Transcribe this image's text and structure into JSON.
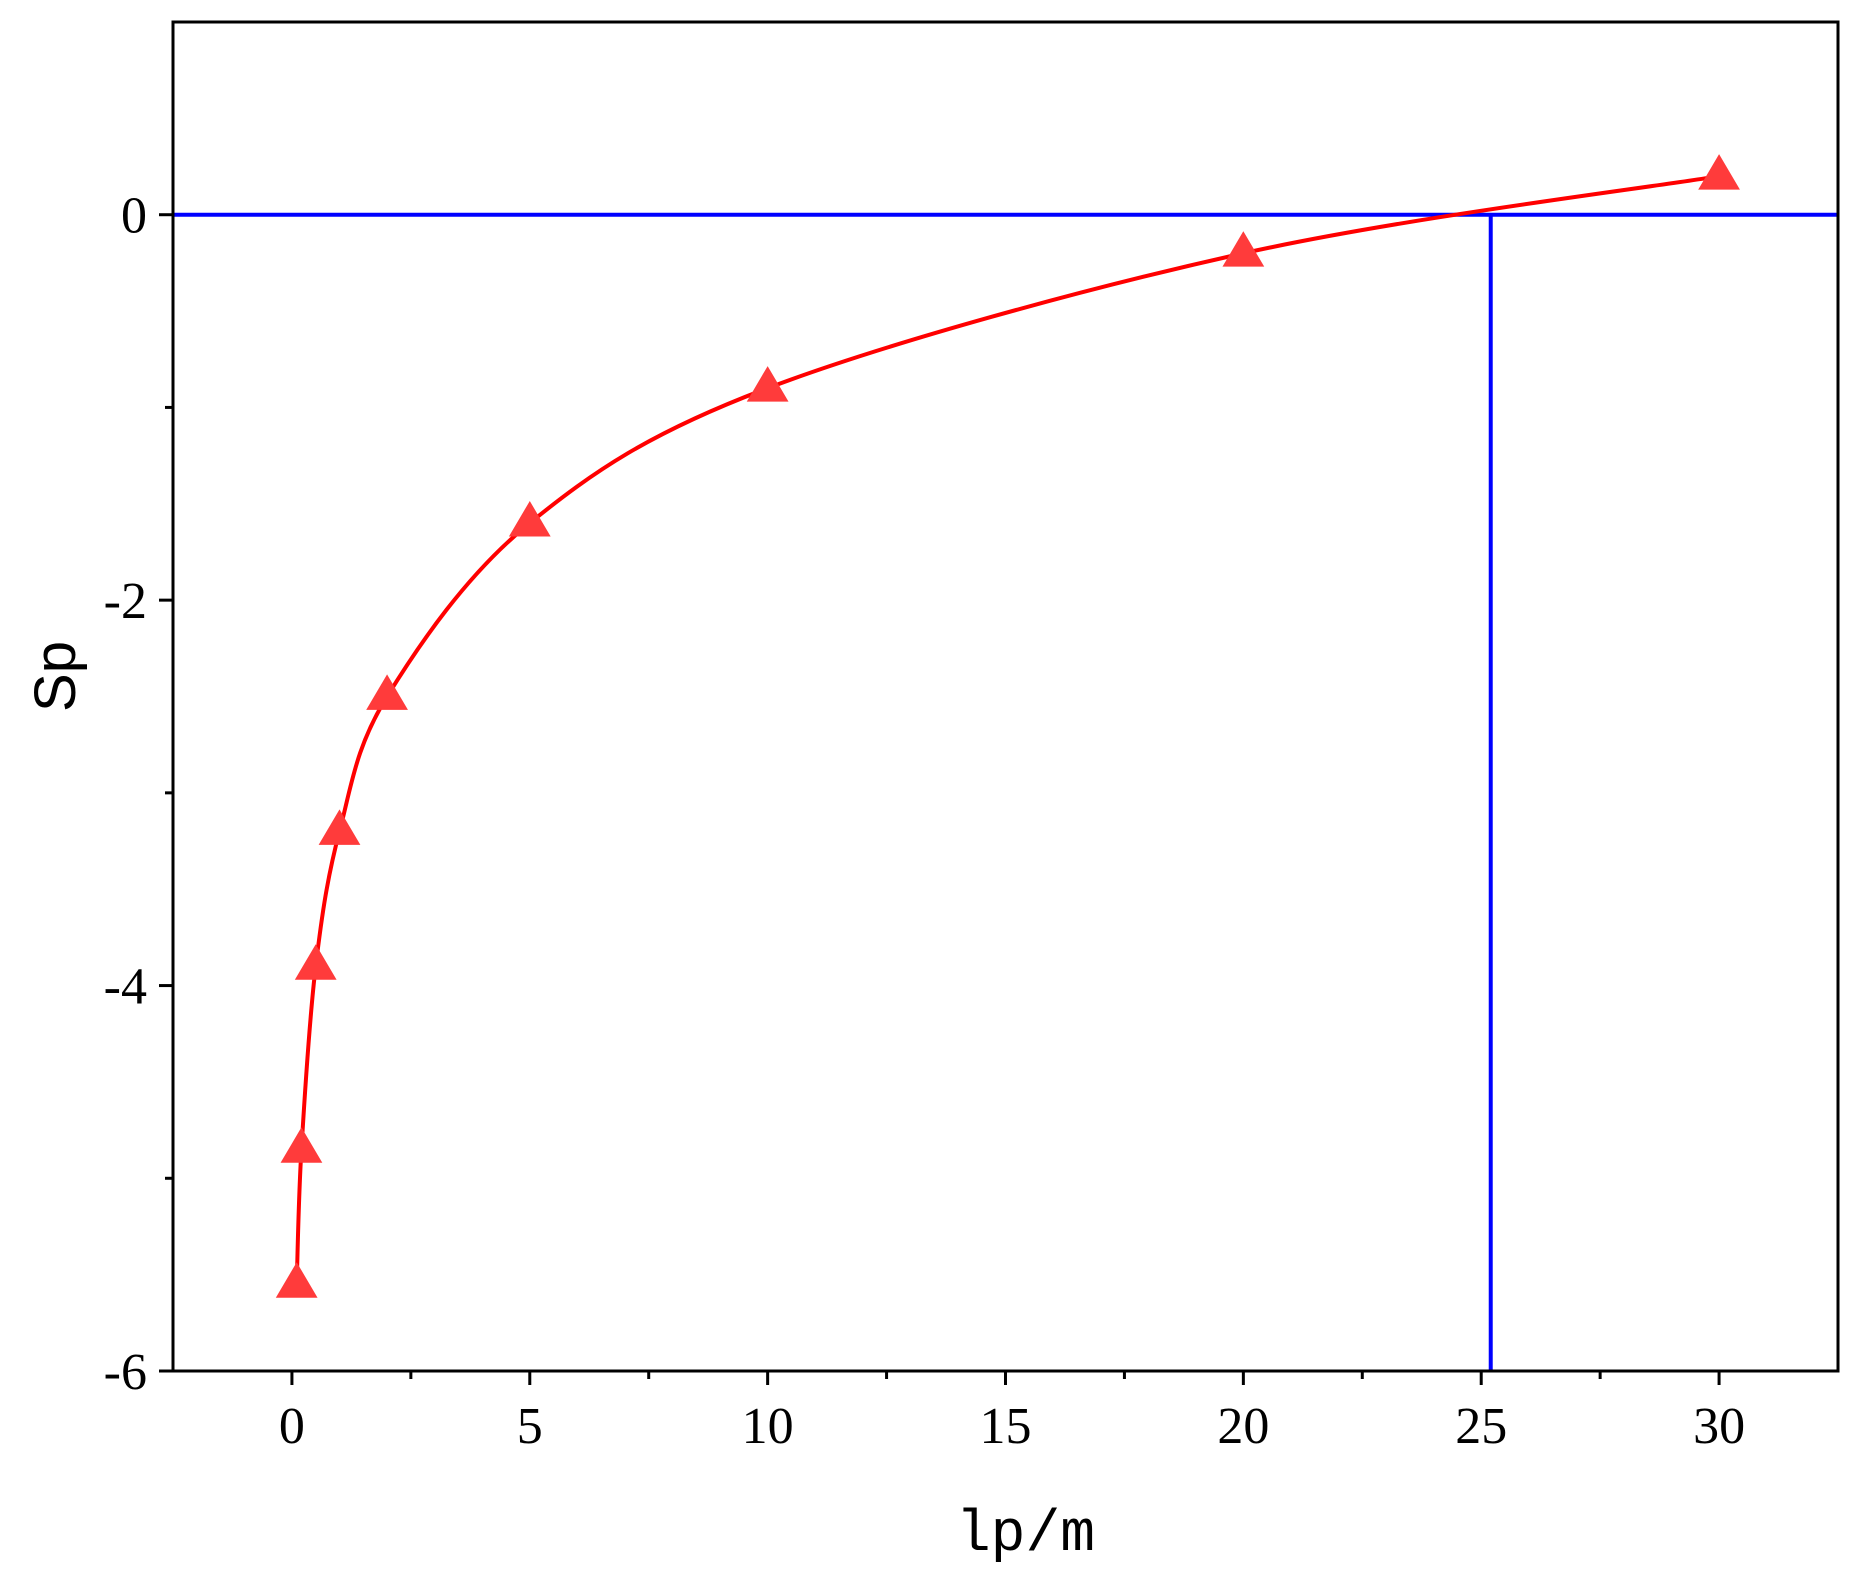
{
  "chart_data": {
    "type": "line",
    "title": "",
    "xlabel": "lp/m",
    "ylabel": "Sp",
    "xlim": [
      -2.5,
      32.5
    ],
    "ylim": [
      -6,
      1
    ],
    "x_ticks": [
      0,
      5,
      10,
      15,
      20,
      25,
      30
    ],
    "x_tick_labels": [
      "0",
      "5",
      "10",
      "15",
      "20",
      "25",
      "30"
    ],
    "y_ticks": [
      -6,
      -4,
      -2,
      0
    ],
    "y_tick_labels": [
      "-6",
      "-4",
      "-2",
      "0"
    ],
    "grid": false,
    "legend": "none",
    "series": [
      {
        "color": "#ff3b3b",
        "line_color": "#ff0000",
        "marker": "triangle",
        "x": [
          0.1,
          0.2,
          0.5,
          1,
          2,
          5,
          10,
          20,
          30
        ],
        "y": [
          -5.55,
          -4.85,
          -3.9,
          -3.2,
          -2.5,
          -1.6,
          -0.9,
          -0.2,
          0.2
        ]
      }
    ],
    "reference_lines": [
      {
        "orientation": "horizontal",
        "y": 0,
        "color": "#0000ff"
      },
      {
        "orientation": "vertical",
        "x": 25.2,
        "color": "#0000ff"
      }
    ]
  }
}
